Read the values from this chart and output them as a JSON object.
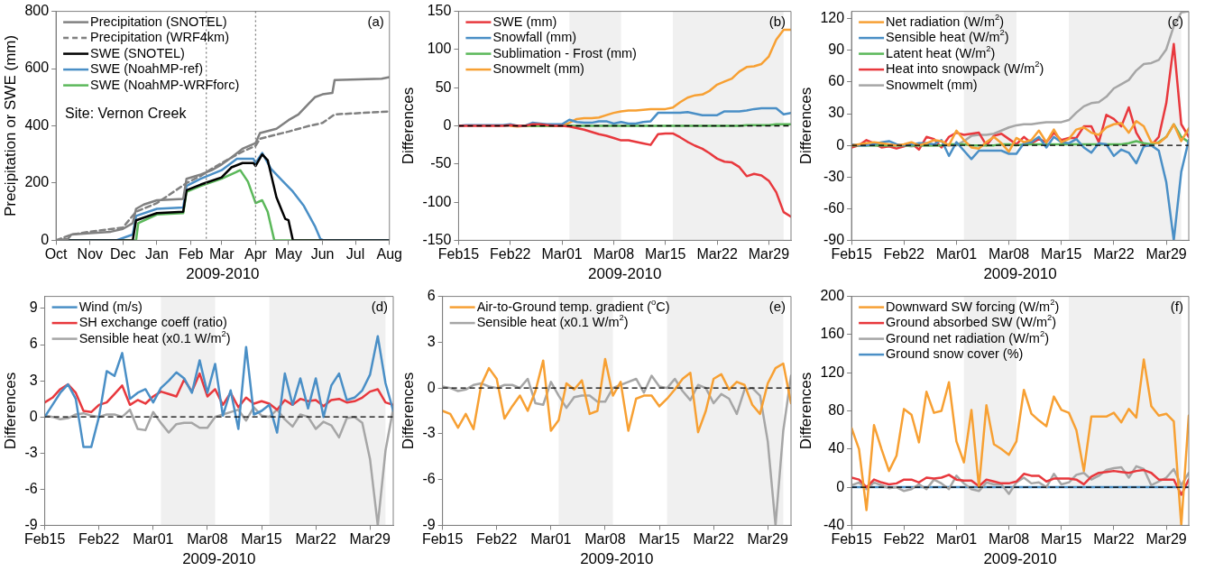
{
  "chart_data": [
    {
      "type": "line",
      "xlabel": "2009-2010",
      "ylabel": "Precipitation or SWE (mm)",
      "xlim": [
        "2009-10-01",
        "2010-08-01"
      ],
      "ylim": [
        0,
        800
      ],
      "yticks": [
        0,
        200,
        400,
        600,
        800
      ],
      "xticks": [
        {
          "value": "2009-10-01",
          "label": "Oct"
        },
        {
          "value": "2009-11-01",
          "label": "Nov"
        },
        {
          "value": "2009-12-01",
          "label": "Dec"
        },
        {
          "value": "2010-01-01",
          "label": "Jan"
        },
        {
          "value": "2010-02-01",
          "label": "Feb"
        },
        {
          "value": "2010-03-01",
          "label": "Mar"
        },
        {
          "value": "2010-04-01",
          "label": "Apr"
        },
        {
          "value": "2010-05-01",
          "label": "May"
        },
        {
          "value": "2010-06-01",
          "label": "Jun"
        },
        {
          "value": "2010-07-01",
          "label": "Jul"
        },
        {
          "value": "2010-08-01",
          "label": "Aug"
        }
      ],
      "grid": false,
      "legend": "top left",
      "annotations": [
        "(a)",
        "Site: Vernon Creek"
      ],
      "ref_lines": [
        {
          "axis": "x",
          "value": "2010-02-15",
          "color": "#808080",
          "line_style": "dotted"
        },
        {
          "axis": "x",
          "value": "2010-04-01",
          "color": "#808080",
          "line_style": "dotted"
        }
      ],
      "series": [
        {
          "name": "Precipitation (SNOTEL)",
          "color": "#808080",
          "x": [
            "2009-10-01",
            "2009-10-12",
            "2009-10-15",
            "2009-11-01",
            "2009-11-20",
            "2009-12-01",
            "2009-12-10",
            "2009-12-13",
            "2009-12-20",
            "2010-01-01",
            "2010-01-25",
            "2010-01-28",
            "2010-02-10",
            "2010-02-20",
            "2010-03-01",
            "2010-03-10",
            "2010-03-20",
            "2010-04-01",
            "2010-04-05",
            "2010-04-20",
            "2010-05-01",
            "2010-05-10",
            "2010-05-20",
            "2010-05-25",
            "2010-06-01",
            "2010-06-10",
            "2010-06-12",
            "2010-07-25",
            "2010-08-01"
          ],
          "values": [
            0,
            5,
            20,
            25,
            30,
            40,
            60,
            110,
            125,
            140,
            145,
            215,
            230,
            245,
            265,
            290,
            320,
            340,
            375,
            390,
            420,
            440,
            480,
            500,
            510,
            515,
            560,
            565,
            570
          ]
        },
        {
          "name": "Precipitation (WRF4km)",
          "color": "#808080",
          "line_style": "dashed",
          "x": [
            "2009-10-01",
            "2009-10-15",
            "2009-11-01",
            "2009-12-01",
            "2009-12-13",
            "2010-01-01",
            "2010-01-28",
            "2010-02-10",
            "2010-02-20",
            "2010-03-01",
            "2010-03-20",
            "2010-04-01",
            "2010-04-05",
            "2010-05-01",
            "2010-05-20",
            "2010-06-01",
            "2010-06-12",
            "2010-08-01"
          ],
          "values": [
            0,
            20,
            30,
            45,
            100,
            130,
            200,
            225,
            250,
            270,
            310,
            330,
            355,
            380,
            400,
            410,
            440,
            450
          ]
        },
        {
          "name": "SWE (SNOTEL)",
          "color": "#000000",
          "x": [
            "2009-10-01",
            "2009-12-10",
            "2009-12-13",
            "2010-01-01",
            "2010-01-25",
            "2010-01-28",
            "2010-02-10",
            "2010-03-01",
            "2010-03-10",
            "2010-03-20",
            "2010-03-30",
            "2010-04-01",
            "2010-04-07",
            "2010-04-12",
            "2010-04-20",
            "2010-04-28",
            "2010-05-01",
            "2010-05-05",
            "2010-08-01"
          ],
          "values": [
            0,
            0,
            70,
            95,
            100,
            175,
            195,
            220,
            255,
            270,
            270,
            260,
            300,
            280,
            150,
            75,
            70,
            0,
            0
          ]
        },
        {
          "name": "SWE (NoahMP-ref)",
          "color": "#4a8fc6",
          "x": [
            "2009-10-01",
            "2009-11-25",
            "2009-12-10",
            "2009-12-13",
            "2010-01-01",
            "2010-01-25",
            "2010-01-28",
            "2010-02-10",
            "2010-03-01",
            "2010-03-15",
            "2010-03-30",
            "2010-04-01",
            "2010-04-07",
            "2010-04-15",
            "2010-04-25",
            "2010-05-05",
            "2010-05-15",
            "2010-05-25",
            "2010-05-30",
            "2010-06-02",
            "2010-08-01"
          ],
          "values": [
            0,
            0,
            20,
            85,
            110,
            115,
            190,
            215,
            245,
            285,
            285,
            270,
            305,
            250,
            210,
            170,
            120,
            50,
            5,
            0,
            0
          ]
        },
        {
          "name": "SWE (NoahMP-WRFforc)",
          "color": "#5bb85a",
          "x": [
            "2009-10-01",
            "2009-12-13",
            "2009-12-15",
            "2010-01-01",
            "2010-01-25",
            "2010-01-28",
            "2010-02-10",
            "2010-03-01",
            "2010-03-15",
            "2010-03-18",
            "2010-03-25",
            "2010-04-01",
            "2010-04-07",
            "2010-04-12",
            "2010-04-18",
            "2010-08-01"
          ],
          "values": [
            0,
            0,
            60,
            90,
            95,
            170,
            190,
            215,
            240,
            245,
            205,
            130,
            140,
            100,
            0,
            0
          ]
        }
      ]
    },
    {
      "type": "line",
      "xlabel": "2009-2010",
      "ylabel": "Differences",
      "xlim": [
        "2010-02-15",
        "2010-04-01"
      ],
      "ylim": [
        -150,
        150
      ],
      "yticks": [
        -150,
        -100,
        -50,
        0,
        50,
        100,
        150
      ],
      "xticks": [
        {
          "value": "2010-02-15",
          "label": "Feb15"
        },
        {
          "value": "2010-02-22",
          "label": "Feb22"
        },
        {
          "value": "2010-03-01",
          "label": "Mar01"
        },
        {
          "value": "2010-03-08",
          "label": "Mar08"
        },
        {
          "value": "2010-03-15",
          "label": "Mar15"
        },
        {
          "value": "2010-03-22",
          "label": "Mar22"
        },
        {
          "value": "2010-03-29",
          "label": "Mar29"
        }
      ],
      "grid": false,
      "legend": "top left",
      "annotations": [
        "(b)"
      ],
      "ref_lines": [
        {
          "axis": "y",
          "value": 0,
          "color": "#000000",
          "line_style": "dashed"
        }
      ],
      "bands": [
        {
          "axis": "x",
          "from": "2010-03-02",
          "to": "2010-03-09",
          "color": "#f0f0f0"
        },
        {
          "axis": "x",
          "from": "2010-03-16",
          "to": "2010-03-31",
          "color": "#f0f0f0"
        }
      ],
      "x": [
        "2010-02-15",
        "2010-02-16",
        "2010-02-17",
        "2010-02-18",
        "2010-02-19",
        "2010-02-20",
        "2010-02-21",
        "2010-02-22",
        "2010-02-23",
        "2010-02-24",
        "2010-02-25",
        "2010-02-26",
        "2010-02-27",
        "2010-02-28",
        "2010-03-01",
        "2010-03-02",
        "2010-03-03",
        "2010-03-04",
        "2010-03-05",
        "2010-03-06",
        "2010-03-07",
        "2010-03-08",
        "2010-03-09",
        "2010-03-10",
        "2010-03-11",
        "2010-03-12",
        "2010-03-13",
        "2010-03-14",
        "2010-03-15",
        "2010-03-16",
        "2010-03-17",
        "2010-03-18",
        "2010-03-19",
        "2010-03-20",
        "2010-03-21",
        "2010-03-22",
        "2010-03-23",
        "2010-03-24",
        "2010-03-25",
        "2010-03-26",
        "2010-03-27",
        "2010-03-28",
        "2010-03-29",
        "2010-03-30",
        "2010-03-31",
        "2010-04-01"
      ],
      "series": [
        {
          "name": "SWE (mm)",
          "color": "#e8383d",
          "values": [
            0,
            0,
            0,
            0,
            0,
            0,
            0,
            1,
            0,
            0,
            2,
            2,
            1,
            0,
            0,
            -1,
            -3,
            -5,
            -8,
            -11,
            -13,
            -16,
            -19,
            -19,
            -21,
            -23,
            -25,
            -11,
            -10,
            -10,
            -15,
            -21,
            -26,
            -30,
            -36,
            -43,
            -47,
            -48,
            -54,
            -66,
            -63,
            -65,
            -72,
            -87,
            -113,
            -119
          ]
        },
        {
          "name": "Snowfall (mm)",
          "color": "#4a8fc6",
          "values": [
            0,
            1,
            1,
            1,
            1,
            1,
            1,
            2,
            0,
            0,
            4,
            3,
            2,
            2,
            2,
            8,
            5,
            4,
            4,
            6,
            6,
            3,
            5,
            3,
            3,
            5,
            6,
            17,
            17,
            17,
            17,
            18,
            16,
            14,
            14,
            14,
            19,
            19,
            19,
            20,
            22,
            23,
            23,
            23,
            15,
            17
          ]
        },
        {
          "name": "Sublimation - Frost (mm)",
          "color": "#5bb85a",
          "values": [
            null,
            null,
            null,
            null,
            null,
            null,
            null,
            null,
            0,
            0,
            0,
            0,
            0,
            0,
            0,
            0,
            0,
            0,
            0,
            0,
            0,
            0,
            0,
            0,
            0,
            0,
            0,
            0,
            0,
            0,
            0,
            0,
            0,
            0,
            0,
            0,
            0,
            0,
            0,
            1,
            1,
            1,
            1,
            2,
            2,
            2
          ]
        },
        {
          "name": "Snowmelt (mm)",
          "color": "#f7a033",
          "values": [
            null,
            null,
            null,
            null,
            null,
            null,
            null,
            0,
            -1,
            0,
            0,
            0,
            0,
            0,
            0,
            4,
            9,
            10,
            10,
            11,
            14,
            17,
            19,
            20,
            20,
            21,
            22,
            22,
            22,
            24,
            31,
            37,
            40,
            41,
            46,
            54,
            58,
            62,
            71,
            77,
            78,
            81,
            91,
            113,
            126,
            126
          ]
        }
      ]
    },
    {
      "type": "line",
      "xlabel": "2009-2010",
      "ylabel": "Differences",
      "xlim": [
        "2010-02-15",
        "2010-04-01"
      ],
      "ylim": [
        -90,
        127
      ],
      "yticks": [
        -90,
        -60,
        -30,
        0,
        30,
        60,
        90,
        120
      ],
      "xticks": [
        {
          "value": "2010-02-15",
          "label": "Feb15"
        },
        {
          "value": "2010-02-22",
          "label": "Feb22"
        },
        {
          "value": "2010-03-01",
          "label": "Mar01"
        },
        {
          "value": "2010-03-08",
          "label": "Mar08"
        },
        {
          "value": "2010-03-15",
          "label": "Mar15"
        },
        {
          "value": "2010-03-22",
          "label": "Mar22"
        },
        {
          "value": "2010-03-29",
          "label": "Mar29"
        }
      ],
      "grid": false,
      "legend": "top left",
      "annotations": [
        "(c)"
      ],
      "ref_lines": [
        {
          "axis": "y",
          "value": 0,
          "color": "#000000",
          "line_style": "dashed"
        }
      ],
      "bands": [
        {
          "axis": "x",
          "from": "2010-03-02",
          "to": "2010-03-09",
          "color": "#f0f0f0"
        },
        {
          "axis": "x",
          "from": "2010-03-16",
          "to": "2010-03-31",
          "color": "#f0f0f0"
        }
      ],
      "x": [
        "2010-02-15",
        "2010-02-16",
        "2010-02-17",
        "2010-02-18",
        "2010-02-19",
        "2010-02-20",
        "2010-02-21",
        "2010-02-22",
        "2010-02-23",
        "2010-02-24",
        "2010-02-25",
        "2010-02-26",
        "2010-02-27",
        "2010-02-28",
        "2010-03-01",
        "2010-03-02",
        "2010-03-03",
        "2010-03-04",
        "2010-03-05",
        "2010-03-06",
        "2010-03-07",
        "2010-03-08",
        "2010-03-09",
        "2010-03-10",
        "2010-03-11",
        "2010-03-12",
        "2010-03-13",
        "2010-03-14",
        "2010-03-15",
        "2010-03-16",
        "2010-03-17",
        "2010-03-18",
        "2010-03-19",
        "2010-03-20",
        "2010-03-21",
        "2010-03-22",
        "2010-03-23",
        "2010-03-24",
        "2010-03-25",
        "2010-03-26",
        "2010-03-27",
        "2010-03-28",
        "2010-03-29",
        "2010-03-30",
        "2010-03-31",
        "2010-04-01"
      ],
      "series": [
        {
          "name": "Net radiation (W/m$^{2}$)",
          "color": "#f7a033",
          "values": [
            0,
            1,
            2,
            3,
            2,
            1,
            0,
            1,
            3,
            0,
            2,
            5,
            4,
            0,
            14,
            5,
            -2,
            -3,
            3,
            8,
            2,
            -6,
            7,
            3,
            5,
            14,
            3,
            15,
            3,
            6,
            15,
            17,
            12,
            10,
            17,
            20,
            21,
            12,
            23,
            18,
            3,
            2,
            8,
            20,
            4,
            16
          ]
        },
        {
          "name": "Sensible heat (W/m$^{2}$)",
          "color": "#4a8fc6",
          "values": [
            1,
            0,
            0,
            1,
            3,
            4,
            1,
            0,
            1,
            2,
            2,
            1,
            5,
            -10,
            3,
            -5,
            -13,
            -5,
            -5,
            -5,
            -5,
            -8,
            -8,
            2,
            3,
            8,
            -2,
            8,
            3,
            2,
            6,
            -2,
            -7,
            2,
            1,
            -10,
            -4,
            -7,
            -17,
            -1,
            0,
            -5,
            -35,
            -90,
            -25,
            5
          ]
        },
        {
          "name": "Latent heat (W/m$^{2}$)",
          "color": "#5bb85a",
          "values": [
            0,
            0,
            0,
            0,
            0,
            0,
            0,
            0,
            0,
            0,
            0,
            0,
            0,
            1,
            1,
            1,
            0,
            0,
            0,
            0,
            1,
            1,
            0,
            1,
            1,
            1,
            1,
            1,
            1,
            1,
            1,
            1,
            1,
            1,
            1,
            1,
            1,
            2,
            4,
            2,
            1,
            3,
            8,
            20,
            8,
            3
          ]
        },
        {
          "name": "Heat into snowpack (W/m$^{2}$)",
          "color": "#e8383d",
          "values": [
            -2,
            0,
            5,
            2,
            -2,
            -1,
            -3,
            -1,
            2,
            -4,
            8,
            6,
            -2,
            8,
            12,
            10,
            11,
            12,
            0,
            9,
            11,
            6,
            1,
            8,
            2,
            6,
            3,
            12,
            5,
            7,
            7,
            18,
            18,
            3,
            29,
            25,
            18,
            36,
            12,
            0,
            0,
            8,
            40,
            96,
            20,
            8
          ]
        },
        {
          "name": "Snowmelt (mm)",
          "color": "#a6a6a6",
          "values": [
            0,
            0,
            0,
            0,
            0,
            0,
            0,
            0,
            -1,
            0,
            0,
            0,
            0,
            0,
            0,
            4,
            9,
            10,
            10,
            11,
            14,
            17,
            19,
            20,
            20,
            21,
            22,
            22,
            22,
            24,
            31,
            37,
            40,
            41,
            46,
            54,
            58,
            62,
            71,
            77,
            78,
            81,
            91,
            113,
            126,
            127
          ]
        }
      ]
    },
    {
      "type": "line",
      "xlabel": "2009-2010",
      "ylabel": "Differences",
      "xlim": [
        "2010-02-15",
        "2010-04-01"
      ],
      "ylim": [
        -9,
        10
      ],
      "yticks": [
        -9,
        -6,
        -3,
        0,
        3,
        6,
        9
      ],
      "xticks": [
        {
          "value": "2010-02-15",
          "label": "Feb15"
        },
        {
          "value": "2010-02-22",
          "label": "Feb22"
        },
        {
          "value": "2010-03-01",
          "label": "Mar01"
        },
        {
          "value": "2010-03-08",
          "label": "Mar08"
        },
        {
          "value": "2010-03-15",
          "label": "Mar15"
        },
        {
          "value": "2010-03-22",
          "label": "Mar22"
        },
        {
          "value": "2010-03-29",
          "label": "Mar29"
        }
      ],
      "grid": false,
      "legend": "top left",
      "annotations": [
        "(d)"
      ],
      "ref_lines": [
        {
          "axis": "y",
          "value": 0,
          "color": "#000000",
          "line_style": "dashed"
        }
      ],
      "bands": [
        {
          "axis": "x",
          "from": "2010-03-02",
          "to": "2010-03-09",
          "color": "#f0f0f0"
        },
        {
          "axis": "x",
          "from": "2010-03-16",
          "to": "2010-03-31",
          "color": "#f0f0f0"
        }
      ],
      "x": [
        "2010-02-15",
        "2010-02-16",
        "2010-02-17",
        "2010-02-18",
        "2010-02-19",
        "2010-02-20",
        "2010-02-21",
        "2010-02-22",
        "2010-02-23",
        "2010-02-24",
        "2010-02-25",
        "2010-02-26",
        "2010-02-27",
        "2010-02-28",
        "2010-03-01",
        "2010-03-02",
        "2010-03-03",
        "2010-03-04",
        "2010-03-05",
        "2010-03-06",
        "2010-03-07",
        "2010-03-08",
        "2010-03-09",
        "2010-03-10",
        "2010-03-11",
        "2010-03-12",
        "2010-03-13",
        "2010-03-14",
        "2010-03-15",
        "2010-03-16",
        "2010-03-17",
        "2010-03-18",
        "2010-03-19",
        "2010-03-20",
        "2010-03-21",
        "2010-03-22",
        "2010-03-23",
        "2010-03-24",
        "2010-03-25",
        "2010-03-26",
        "2010-03-27",
        "2010-03-28",
        "2010-03-29",
        "2010-03-30",
        "2010-03-31",
        "2010-04-01"
      ],
      "series": [
        {
          "name": "Wind (m/s)",
          "color": "#4a8fc6",
          "values": [
            0,
            1,
            2,
            2.7,
            1.5,
            -2.5,
            -2.5,
            0,
            3.8,
            3.4,
            5.3,
            1.5,
            2,
            2.3,
            1.2,
            2.4,
            3,
            3.7,
            3.2,
            2,
            4.7,
            2,
            4.4,
            0.1,
            2.2,
            -1,
            5.8,
            0.2,
            0.5,
            1,
            -1.3,
            3.6,
            1,
            3.2,
            0.7,
            3.2,
            0,
            2.6,
            3.6,
            1.4,
            1.6,
            2.2,
            3.5,
            6.7,
            2.8,
            0.5
          ]
        },
        {
          "name": "SH exchange coeff (ratio)",
          "color": "#e8383d",
          "values": [
            1.2,
            1.6,
            2.3,
            2.7,
            2,
            0.5,
            0.4,
            1,
            1.2,
            1.9,
            2.6,
            1,
            1.4,
            1.1,
            1.7,
            2.1,
            1.9,
            1.7,
            3.1,
            2.1,
            3.6,
            1.7,
            2.3,
            1,
            2,
            0.8,
            1.6,
            1.1,
            1.3,
            1.1,
            0.6,
            1.4,
            1,
            1.5,
            1.3,
            1.4,
            0.9,
            1.4,
            1.5,
            1.2,
            1.3,
            1.6,
            2.1,
            2.3,
            1.2,
            1
          ]
        },
        {
          "name": "Sensible heat (x0.1 W/m$^{2}$)",
          "color": "#a6a6a6",
          "values": [
            0.1,
            0,
            -0.2,
            -0.1,
            0.2,
            0.3,
            0.1,
            0,
            0.2,
            0.2,
            0,
            0.6,
            -1,
            -1.1,
            0.4,
            -0.5,
            -1.3,
            -0.6,
            -0.5,
            -0.5,
            -0.9,
            -0.9,
            0,
            0.2,
            0.4,
            0.6,
            -0.3,
            0.8,
            0.1,
            0,
            0.6,
            -0.2,
            -0.8,
            0.2,
            0,
            -1,
            -0.4,
            -0.7,
            -1.7,
            -0.1,
            0,
            -0.5,
            -3.5,
            -9,
            -2.8,
            0.7
          ]
        }
      ]
    },
    {
      "type": "line",
      "xlabel": "2009-2010",
      "ylabel": "Differences",
      "xlim": [
        "2010-02-15",
        "2010-04-01"
      ],
      "ylim": [
        -9,
        6
      ],
      "yticks": [
        -9,
        -6,
        -3,
        0,
        3,
        6
      ],
      "xticks": [
        {
          "value": "2010-02-15",
          "label": "Feb15"
        },
        {
          "value": "2010-02-22",
          "label": "Feb22"
        },
        {
          "value": "2010-03-01",
          "label": "Mar01"
        },
        {
          "value": "2010-03-08",
          "label": "Mar08"
        },
        {
          "value": "2010-03-15",
          "label": "Mar15"
        },
        {
          "value": "2010-03-22",
          "label": "Mar22"
        },
        {
          "value": "2010-03-29",
          "label": "Mar29"
        }
      ],
      "grid": false,
      "legend": "top left",
      "annotations": [
        "(e)"
      ],
      "ref_lines": [
        {
          "axis": "y",
          "value": 0,
          "color": "#000000",
          "line_style": "dashed"
        }
      ],
      "bands": [
        {
          "axis": "x",
          "from": "2010-03-02",
          "to": "2010-03-09",
          "color": "#f0f0f0"
        },
        {
          "axis": "x",
          "from": "2010-03-16",
          "to": "2010-03-31",
          "color": "#f0f0f0"
        }
      ],
      "x": [
        "2010-02-15",
        "2010-02-16",
        "2010-02-17",
        "2010-02-18",
        "2010-02-19",
        "2010-02-20",
        "2010-02-21",
        "2010-02-22",
        "2010-02-23",
        "2010-02-24",
        "2010-02-25",
        "2010-02-26",
        "2010-02-27",
        "2010-02-28",
        "2010-03-01",
        "2010-03-02",
        "2010-03-03",
        "2010-03-04",
        "2010-03-05",
        "2010-03-06",
        "2010-03-07",
        "2010-03-08",
        "2010-03-09",
        "2010-03-10",
        "2010-03-11",
        "2010-03-12",
        "2010-03-13",
        "2010-03-14",
        "2010-03-15",
        "2010-03-16",
        "2010-03-17",
        "2010-03-18",
        "2010-03-19",
        "2010-03-20",
        "2010-03-21",
        "2010-03-22",
        "2010-03-23",
        "2010-03-24",
        "2010-03-25",
        "2010-03-26",
        "2010-03-27",
        "2010-03-28",
        "2010-03-29",
        "2010-03-30",
        "2010-03-31",
        "2010-04-01"
      ],
      "series": [
        {
          "name": "Air-to-Ground temp. gradient ($^{o}$C)",
          "color": "#f7a033",
          "values": [
            -1.5,
            -1.7,
            -2.6,
            -1.7,
            -2.7,
            0.2,
            1.3,
            0.6,
            -2,
            -1.2,
            -0.5,
            -1.5,
            -0.2,
            1.8,
            -2.8,
            -2.1,
            0.3,
            -0.1,
            0.5,
            -1.7,
            -1.5,
            1.9,
            -0.5,
            0.4,
            -2.8,
            -0.7,
            -0.5,
            -0.5,
            -1.2,
            -0.7,
            -0.1,
            0.6,
            1,
            -2.9,
            -1.5,
            0.6,
            0.9,
            -0.1,
            0.4,
            0.2,
            -1.1,
            -1.7,
            0.3,
            1.3,
            1.6,
            -1
          ]
        },
        {
          "name": "Sensible heat (x0.1 W/m$^{2}$)",
          "color": "#a6a6a6",
          "values": [
            0.1,
            0,
            -0.2,
            -0.1,
            0.2,
            0.3,
            0.1,
            0,
            0.2,
            0.2,
            0,
            0.6,
            -1,
            -1.1,
            0.4,
            -0.5,
            -1.3,
            -0.6,
            -0.5,
            -0.5,
            -0.9,
            -0.9,
            0,
            0.2,
            0.4,
            0.6,
            -0.3,
            0.8,
            0.1,
            0,
            0.6,
            -0.2,
            -0.8,
            0.2,
            0,
            -1,
            -0.4,
            -0.7,
            -1.7,
            -0.1,
            0,
            -0.5,
            -3.5,
            -9,
            -2.8,
            0.8
          ]
        }
      ]
    },
    {
      "type": "line",
      "xlabel": "2009-2010",
      "ylabel": "Differences",
      "xlim": [
        "2010-02-15",
        "2010-04-01"
      ],
      "ylim": [
        -40,
        200
      ],
      "yticks": [
        -40,
        0,
        40,
        80,
        120,
        160,
        200
      ],
      "xticks": [
        {
          "value": "2010-02-15",
          "label": "Feb15"
        },
        {
          "value": "2010-02-22",
          "label": "Feb22"
        },
        {
          "value": "2010-03-01",
          "label": "Mar01"
        },
        {
          "value": "2010-03-08",
          "label": "Mar08"
        },
        {
          "value": "2010-03-15",
          "label": "Mar15"
        },
        {
          "value": "2010-03-22",
          "label": "Mar22"
        },
        {
          "value": "2010-03-29",
          "label": "Mar29"
        }
      ],
      "grid": false,
      "legend": "top left",
      "annotations": [
        "(f)"
      ],
      "ref_lines": [
        {
          "axis": "y",
          "value": 0,
          "color": "#000000",
          "line_style": "dashed"
        }
      ],
      "bands": [
        {
          "axis": "x",
          "from": "2010-03-02",
          "to": "2010-03-09",
          "color": "#f0f0f0"
        },
        {
          "axis": "x",
          "from": "2010-03-16",
          "to": "2010-03-31",
          "color": "#f0f0f0"
        }
      ],
      "x": [
        "2010-02-15",
        "2010-02-16",
        "2010-02-17",
        "2010-02-18",
        "2010-02-19",
        "2010-02-20",
        "2010-02-21",
        "2010-02-22",
        "2010-02-23",
        "2010-02-24",
        "2010-02-25",
        "2010-02-26",
        "2010-02-27",
        "2010-02-28",
        "2010-03-01",
        "2010-03-02",
        "2010-03-03",
        "2010-03-04",
        "2010-03-05",
        "2010-03-06",
        "2010-03-07",
        "2010-03-08",
        "2010-03-09",
        "2010-03-10",
        "2010-03-11",
        "2010-03-12",
        "2010-03-13",
        "2010-03-14",
        "2010-03-15",
        "2010-03-16",
        "2010-03-17",
        "2010-03-18",
        "2010-03-19",
        "2010-03-20",
        "2010-03-21",
        "2010-03-22",
        "2010-03-23",
        "2010-03-24",
        "2010-03-25",
        "2010-03-26",
        "2010-03-27",
        "2010-03-28",
        "2010-03-29",
        "2010-03-30",
        "2010-03-31",
        "2010-04-01"
      ],
      "series": [
        {
          "name": "Downward SW forcing (W/m$^{2}$)",
          "color": "#f7a033",
          "values": [
            62,
            40,
            -24,
            65,
            40,
            17,
            33,
            82,
            76,
            47,
            100,
            78,
            80,
            110,
            48,
            26,
            81,
            0,
            86,
            45,
            40,
            34,
            48,
            102,
            77,
            70,
            64,
            95,
            81,
            78,
            60,
            17,
            74,
            74,
            74,
            78,
            68,
            82,
            73,
            134,
            85,
            75,
            77,
            69,
            -40,
            75
          ]
        },
        {
          "name": "Ground absorbed SW (W/m$^{2}$)",
          "color": "#e8383d",
          "values": [
            10,
            8,
            0,
            8,
            5,
            3,
            4,
            8,
            8,
            5,
            10,
            9,
            10,
            13,
            8,
            7,
            7,
            1,
            8,
            6,
            4,
            4,
            6,
            14,
            12,
            12,
            6,
            9,
            9,
            9,
            8,
            3,
            11,
            15,
            16,
            17,
            16,
            15,
            17,
            18,
            15,
            8,
            8,
            8,
            -8,
            8
          ]
        },
        {
          "name": "Ground net radiation (W/m$^{2}$)",
          "color": "#a6a6a6",
          "values": [
            2,
            5,
            -2,
            5,
            2,
            -1,
            0,
            -4,
            -2,
            3,
            -2,
            8,
            4,
            -2,
            12,
            4,
            -2,
            -4,
            5,
            3,
            3,
            -7,
            5,
            10,
            4,
            5,
            0,
            14,
            3,
            5,
            13,
            15,
            8,
            12,
            18,
            20,
            21,
            10,
            22,
            19,
            2,
            6,
            10,
            19,
            2,
            15
          ]
        },
        {
          "name": "Ground snow cover (%)",
          "color": "#4a8fc6",
          "values": [
            0,
            0,
            0,
            0,
            0,
            0,
            0,
            0,
            0,
            0,
            0,
            0,
            0,
            0,
            0,
            0,
            0,
            0,
            0,
            0,
            0,
            0,
            0,
            0,
            0,
            0,
            0,
            0,
            0,
            0,
            0,
            0,
            0,
            0,
            0,
            0,
            0,
            0,
            0,
            0,
            0,
            0,
            0,
            0,
            0,
            0
          ]
        }
      ]
    }
  ]
}
